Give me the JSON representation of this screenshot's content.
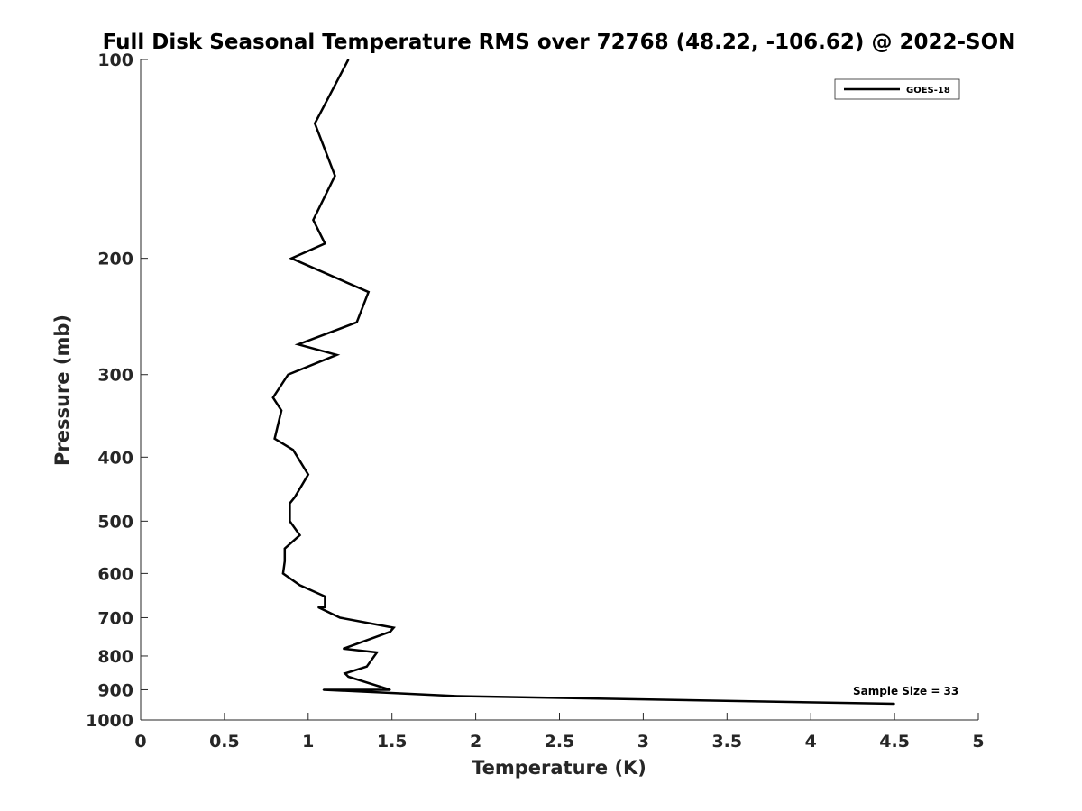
{
  "chart_data": {
    "type": "line",
    "title": "Full Disk Seasonal Temperature RMS over 72768 (48.22, -106.62) @ 2022-SON",
    "xlabel": "Temperature (K)",
    "ylabel": "Pressure (mb)",
    "xlim": [
      0,
      5
    ],
    "ylim": [
      100,
      1000
    ],
    "y_scale": "log",
    "y_reversed": true,
    "x_ticks": [
      0,
      0.5,
      1,
      1.5,
      2,
      2.5,
      3,
      3.5,
      4,
      4.5,
      5
    ],
    "x_tick_labels": [
      "0",
      "0.5",
      "1",
      "1.5",
      "2",
      "2.5",
      "3",
      "3.5",
      "4",
      "4.5",
      "5"
    ],
    "y_ticks": [
      100,
      200,
      300,
      400,
      500,
      600,
      700,
      800,
      900,
      1000
    ],
    "y_tick_labels": [
      "100",
      "200",
      "300",
      "400",
      "500",
      "600",
      "700",
      "800",
      "900",
      "1000"
    ],
    "grid": false,
    "legend": {
      "position": "top-right",
      "entries": [
        "GOES-18"
      ]
    },
    "annotation": "Sample Size = 33",
    "series": [
      {
        "name": "GOES-18",
        "color": "#000000",
        "temperature": [
          1.24,
          1.04,
          1.16,
          1.03,
          1.1,
          0.9,
          1.36,
          1.29,
          0.94,
          1.17,
          0.88,
          0.79,
          0.84,
          0.8,
          0.91,
          1.0,
          0.92,
          0.89,
          0.89,
          0.95,
          0.86,
          0.86,
          0.85,
          0.95,
          1.1,
          1.1,
          1.06,
          1.19,
          1.51,
          1.49,
          1.21,
          1.41,
          1.35,
          1.22,
          1.24,
          1.49,
          1.09,
          1.89,
          4.5
        ],
        "pressure": [
          100,
          125,
          150,
          175,
          190,
          200,
          225,
          250,
          270,
          280,
          300,
          325,
          340,
          375,
          390,
          425,
          460,
          470,
          500,
          525,
          550,
          575,
          600,
          625,
          650,
          675,
          675,
          700,
          725,
          735,
          780,
          790,
          830,
          850,
          860,
          900,
          900,
          920,
          945
        ]
      }
    ]
  }
}
